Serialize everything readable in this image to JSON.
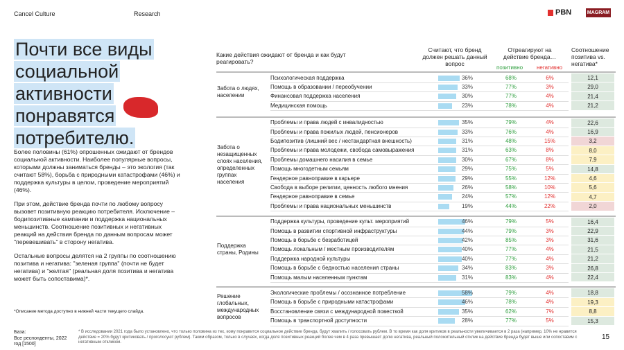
{
  "header": {
    "left": "Cancel Culture",
    "middle": "Research",
    "logo_pbn": "PBN",
    "logo_magram": "MAGRAM"
  },
  "left": {
    "title": "Почти все виды социальной активности понравятся потребителю.",
    "paragraphs": [
      "Более половины (61%) опрошенных ожидают от брендов социальной активности. Наиболее популярные вопросы, которыми должны заниматься бренды – это экология (так считают 58%), борьба с природными катастрофами (46%) и поддержка культуры в целом, проведение мероприятий (46%).",
      "При этом, действие бренда почти по любому вопросу вызовет позитивную реакцию потребителя. Исключение – бодипозитивные кампании и поддержка национальных меньшинств. Соотношение позитивных и негативных реакций на действия бренда по данным вопросам может \"перевешивать\" в сторону негатива.",
      "Остальные вопросы делятся на 2 группы по соотношению позитива и негатива: \"зеленая группа\" (почти не будет негатива) и \"желтая\" (реальная доля позитива и негатива может быть сопоставима)*."
    ],
    "note": "*Описание метода доступно в нижней части текущего слайда."
  },
  "table": {
    "question": "Какие действия ожидают от бренда и как будут реагировать?",
    "col_share": "Считают, что бренд должен решать данный вопрос",
    "col_react": "Отреагируют на действие бренда…",
    "col_pos": "позитивно",
    "col_neg": "негативно",
    "col_ratio": "Соотношение позитива vs. негатива*",
    "pos_color": "#2e9e3e",
    "neg_color": "#e2302f",
    "bar_color": "#a9dbf2",
    "groups": [
      {
        "label": "Забота о людях, населении",
        "rows": [
          {
            "name": "Психологическая поддержка",
            "share": 36,
            "share_label": "36%",
            "pos": "68%",
            "neg": "6%",
            "ratio": "12,1",
            "ratio_bg": "#dde9df"
          },
          {
            "name": "Помощь в образовании / переобучении",
            "share": 33,
            "share_label": "33%",
            "pos": "77%",
            "neg": "3%",
            "ratio": "29,0",
            "ratio_bg": "#dde9df"
          },
          {
            "name": "Финансовая поддержка населения",
            "share": 30,
            "share_label": "30%",
            "pos": "77%",
            "neg": "4%",
            "ratio": "21,4",
            "ratio_bg": "#dde9df"
          },
          {
            "name": "Медицинская помощь",
            "share": 23,
            "share_label": "23%",
            "pos": "78%",
            "neg": "4%",
            "ratio": "21,2",
            "ratio_bg": "#dde9df"
          }
        ]
      },
      {
        "label": "Забота о незащищенных слоях населения, определенных группах населения",
        "rows": [
          {
            "name": "Проблемы и права людей с инвалидностью",
            "share": 35,
            "share_label": "35%",
            "pos": "79%",
            "neg": "4%",
            "ratio": "22,6",
            "ratio_bg": "#dde9df"
          },
          {
            "name": "Проблемы и права пожилых людей, пенсионеров",
            "share": 33,
            "share_label": "33%",
            "pos": "76%",
            "neg": "4%",
            "ratio": "16,9",
            "ratio_bg": "#dde9df"
          },
          {
            "name": "Бодипозитив (лишний вес / нестандартная внешность)",
            "share": 31,
            "share_label": "31%",
            "pos": "48%",
            "neg": "15%",
            "ratio": "3,2",
            "ratio_bg": "#f1d6d6"
          },
          {
            "name": "Проблемы и права молодежи, свобода самовыражения",
            "share": 31,
            "share_label": "31%",
            "pos": "63%",
            "neg": "8%",
            "ratio": "8,0",
            "ratio_bg": "#fcf0c4"
          },
          {
            "name": "Проблемы домашнего насилия в семье",
            "share": 30,
            "share_label": "30%",
            "pos": "67%",
            "neg": "8%",
            "ratio": "7,9",
            "ratio_bg": "#fcf0c4"
          },
          {
            "name": "Помощь многодетным семьям",
            "share": 29,
            "share_label": "29%",
            "pos": "75%",
            "neg": "5%",
            "ratio": "14,8",
            "ratio_bg": "#dde9df"
          },
          {
            "name": "Гендерное равноправие в карьере",
            "share": 29,
            "share_label": "29%",
            "pos": "55%",
            "neg": "12%",
            "ratio": "4,6",
            "ratio_bg": "#fcf0c4"
          },
          {
            "name": "Свобода в выборе религии, ценность любого мнения",
            "share": 26,
            "share_label": "26%",
            "pos": "58%",
            "neg": "10%",
            "ratio": "5,6",
            "ratio_bg": "#fcf0c4"
          },
          {
            "name": "Гендерное равноправие в семье",
            "share": 24,
            "share_label": "24%",
            "pos": "57%",
            "neg": "12%",
            "ratio": "4,7",
            "ratio_bg": "#fcf0c4"
          },
          {
            "name": "Проблемы и права национальных меньшинств",
            "share": 19,
            "share_label": "19%",
            "pos": "44%",
            "neg": "22%",
            "ratio": "2,0",
            "ratio_bg": "#f1d6d6"
          }
        ]
      },
      {
        "label": "Поддержка страны, Родины",
        "rows": [
          {
            "name": "Поддержка культуры, проведение культ. мероприятий",
            "share": 46,
            "share_label": "46%",
            "pos": "79%",
            "neg": "5%",
            "ratio": "16,4",
            "ratio_bg": "#dde9df"
          },
          {
            "name": "Помощь в развитии спортивной инфраструктуры",
            "share": 44,
            "share_label": "44%",
            "pos": "79%",
            "neg": "3%",
            "ratio": "22,9",
            "ratio_bg": "#dde9df"
          },
          {
            "name": "Помощь в борьбе с безработицей",
            "share": 42,
            "share_label": "42%",
            "pos": "85%",
            "neg": "3%",
            "ratio": "31,6",
            "ratio_bg": "#dde9df"
          },
          {
            "name": "Помощь локальным / местным производителям",
            "share": 40,
            "share_label": "40%",
            "pos": "77%",
            "neg": "4%",
            "ratio": "21,5",
            "ratio_bg": "#dde9df"
          },
          {
            "name": "Поддержка народной культуры",
            "share": 40,
            "share_label": "40%",
            "pos": "77%",
            "neg": "4%",
            "ratio": "21,2",
            "ratio_bg": "#dde9df"
          },
          {
            "name": "Помощь в борьбе с бедностью населения страны",
            "share": 34,
            "share_label": "34%",
            "pos": "83%",
            "neg": "3%",
            "ratio": "26,8",
            "ratio_bg": "#dde9df"
          },
          {
            "name": "Помощь малым населенным пунктам",
            "share": 31,
            "share_label": "31%",
            "pos": "83%",
            "neg": "4%",
            "ratio": "22,4",
            "ratio_bg": "#dde9df"
          }
        ]
      },
      {
        "label": "Решение глобальных, международных вопросов",
        "rows": [
          {
            "name": "Экологические проблемы / осознанное потребление",
            "share": 58,
            "share_label": "58%",
            "pos": "79%",
            "neg": "4%",
            "ratio": "18,8",
            "ratio_bg": "#dde9df"
          },
          {
            "name": "Помощь в борьбе с природными катастрофами",
            "share": 46,
            "share_label": "46%",
            "pos": "78%",
            "neg": "4%",
            "ratio": "19,3",
            "ratio_bg": "#fcf0c4"
          },
          {
            "name": "Восстановление связи с международной повесткой",
            "share": 35,
            "share_label": "35%",
            "pos": "62%",
            "neg": "7%",
            "ratio": "8,8",
            "ratio_bg": "#fcf0c4"
          },
          {
            "name": "Помощь в транспортной доступности",
            "share": 28,
            "share_label": "28%",
            "pos": "77%",
            "neg": "5%",
            "ratio": "15,3",
            "ratio_bg": "#dde9df"
          }
        ]
      }
    ]
  },
  "footer": {
    "base_label": "База:",
    "base_text": "Все респонденты, 2022 год [1500]",
    "footnote": "* В исследовании 2021 года было установлено, что только половина из тех, кому понравится социальное действие бренда, будут хвалить / голосовать рублем. В то время как доля критиков в реальности увеличивается в 2 раза (например, 10% не нравится действие = 20% будут критиковать / проголосуют рублем). Таким образом, только в случаях, когда доля позитивных реакций более чем в 4 раза превышает долю негатива, реальный положительный отклик на действие бренда будет выше или сопоставим с негативным откликом.",
    "page": "15"
  }
}
